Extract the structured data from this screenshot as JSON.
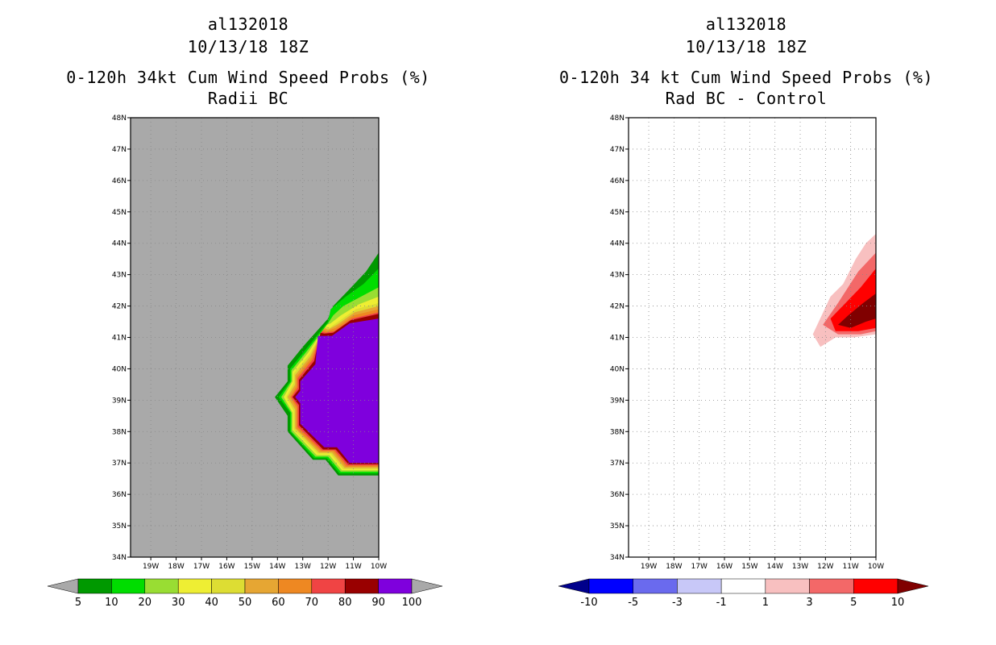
{
  "left_panel": {
    "storm_id": "al132018",
    "datetime": "10/13/18 18Z",
    "title": "0-120h 34kt Cum Wind Speed Probs (%)",
    "subtitle": "Radii BC"
  },
  "right_panel": {
    "storm_id": "al132018",
    "datetime": "10/13/18 18Z",
    "title": "0-120h 34 kt Cum Wind Speed Probs (%)",
    "subtitle": "Rad BC - Control"
  },
  "chart_data": [
    {
      "type": "filled-contour-map",
      "title": "0-120h 34kt Cum Wind Speed Probs (%)",
      "subtitle": "Radii BC",
      "background_color": "#a9a9a9",
      "lon_range": [
        -19.8,
        -10
      ],
      "lat_range": [
        34,
        48
      ],
      "x_ticks": [
        "19W",
        "18W",
        "17W",
        "16W",
        "15W",
        "14W",
        "13W",
        "12W",
        "11W",
        "10W"
      ],
      "y_ticks": [
        "34N",
        "35N",
        "36N",
        "37N",
        "38N",
        "39N",
        "40N",
        "41N",
        "42N",
        "43N",
        "44N",
        "45N",
        "46N",
        "47N",
        "48N"
      ],
      "grid": true,
      "colorbar": {
        "levels": [
          "5",
          "10",
          "20",
          "30",
          "40",
          "50",
          "60",
          "70",
          "80",
          "90",
          "100"
        ],
        "colors": [
          "#009900",
          "#00dd00",
          "#99dd33",
          "#eeee33",
          "#dddd33",
          "#e6a633",
          "#ee8822",
          "#f04444",
          "#990000",
          "#7f00dd"
        ],
        "low_color": "#a9a9a9",
        "high_color": "#a9a9a9"
      },
      "contours": [
        {
          "level": 5,
          "color": "#009900",
          "lonlat": [
            [
              -10,
              43.7
            ],
            [
              -10.5,
              43.1
            ],
            [
              -11.2,
              42.5
            ],
            [
              -11.8,
              42
            ],
            [
              -12.0,
              41.6
            ],
            [
              -13.0,
              40.7
            ],
            [
              -13.6,
              40.1
            ],
            [
              -13.6,
              39.6
            ],
            [
              -14.1,
              39.1
            ],
            [
              -13.6,
              38.5
            ],
            [
              -13.6,
              38.0
            ],
            [
              -12.6,
              37.1
            ],
            [
              -12.1,
              37.1
            ],
            [
              -11.6,
              36.6
            ],
            [
              -10,
              36.6
            ]
          ]
        },
        {
          "level": 10,
          "color": "#00dd00",
          "lonlat": [
            [
              -10,
              43.2
            ],
            [
              -10.6,
              42.7
            ],
            [
              -11.3,
              42.3
            ],
            [
              -11.9,
              41.9
            ],
            [
              -12.0,
              41.5
            ],
            [
              -12.9,
              40.6
            ],
            [
              -13.5,
              40.0
            ],
            [
              -13.5,
              39.6
            ],
            [
              -13.95,
              39.1
            ],
            [
              -13.5,
              38.6
            ],
            [
              -13.5,
              38.0
            ],
            [
              -12.55,
              37.15
            ],
            [
              -12.05,
              37.15
            ],
            [
              -11.55,
              36.67
            ],
            [
              -10,
              36.67
            ]
          ]
        },
        {
          "level": 20,
          "color": "#99dd33",
          "lonlat": [
            [
              -10,
              42.6
            ],
            [
              -10.7,
              42.3
            ],
            [
              -11.4,
              42.0
            ],
            [
              -11.8,
              41.7
            ],
            [
              -12.0,
              41.45
            ],
            [
              -12.85,
              40.55
            ],
            [
              -13.45,
              39.95
            ],
            [
              -13.45,
              39.6
            ],
            [
              -13.85,
              39.1
            ],
            [
              -13.45,
              38.6
            ],
            [
              -13.45,
              38.0
            ],
            [
              -12.5,
              37.2
            ],
            [
              -12.0,
              37.2
            ],
            [
              -11.5,
              36.72
            ],
            [
              -10,
              36.72
            ]
          ]
        },
        {
          "level": 30,
          "color": "#eeee33",
          "lonlat": [
            [
              -10,
              42.3
            ],
            [
              -10.8,
              42.05
            ],
            [
              -11.5,
              41.7
            ],
            [
              -11.9,
              41.45
            ],
            [
              -12.05,
              41.4
            ],
            [
              -12.8,
              40.5
            ],
            [
              -13.4,
              39.9
            ],
            [
              -13.4,
              39.6
            ],
            [
              -13.75,
              39.1
            ],
            [
              -13.4,
              38.6
            ],
            [
              -13.4,
              38.05
            ],
            [
              -12.45,
              37.25
            ],
            [
              -11.95,
              37.25
            ],
            [
              -11.45,
              36.77
            ],
            [
              -10,
              36.77
            ]
          ]
        },
        {
          "level": 40,
          "color": "#dddd33",
          "lonlat": [
            [
              -10,
              42.1
            ],
            [
              -10.9,
              41.9
            ],
            [
              -11.6,
              41.5
            ],
            [
              -11.95,
              41.3
            ],
            [
              -12.1,
              41.35
            ],
            [
              -12.75,
              40.45
            ],
            [
              -13.35,
              39.85
            ],
            [
              -13.35,
              39.55
            ],
            [
              -13.65,
              39.1
            ],
            [
              -13.35,
              38.65
            ],
            [
              -13.35,
              38.05
            ],
            [
              -12.4,
              37.3
            ],
            [
              -11.9,
              37.3
            ],
            [
              -11.4,
              36.8
            ],
            [
              -10,
              36.8
            ]
          ]
        },
        {
          "level": 50,
          "color": "#e6a633",
          "lonlat": [
            [
              -10,
              42.0
            ],
            [
              -10.95,
              41.8
            ],
            [
              -11.65,
              41.4
            ],
            [
              -12.0,
              41.25
            ],
            [
              -12.15,
              41.3
            ],
            [
              -12.7,
              40.4
            ],
            [
              -13.3,
              39.8
            ],
            [
              -13.3,
              39.5
            ],
            [
              -13.6,
              39.1
            ],
            [
              -13.3,
              38.7
            ],
            [
              -13.3,
              38.1
            ],
            [
              -12.35,
              37.33
            ],
            [
              -11.85,
              37.33
            ],
            [
              -11.35,
              36.84
            ],
            [
              -10,
              36.84
            ]
          ]
        },
        {
          "level": 60,
          "color": "#ee8822",
          "lonlat": [
            [
              -10,
              41.9
            ],
            [
              -11.0,
              41.7
            ],
            [
              -11.7,
              41.3
            ],
            [
              -12.05,
              41.2
            ],
            [
              -12.2,
              41.25
            ],
            [
              -12.65,
              40.35
            ],
            [
              -13.25,
              39.75
            ],
            [
              -13.25,
              39.45
            ],
            [
              -13.5,
              39.1
            ],
            [
              -13.25,
              38.75
            ],
            [
              -13.25,
              38.1
            ],
            [
              -12.3,
              37.37
            ],
            [
              -11.8,
              37.37
            ],
            [
              -11.3,
              36.88
            ],
            [
              -10,
              36.88
            ]
          ]
        },
        {
          "level": 70,
          "color": "#f04444",
          "lonlat": [
            [
              -10,
              41.8
            ],
            [
              -11.05,
              41.6
            ],
            [
              -11.75,
              41.2
            ],
            [
              -12.1,
              41.15
            ],
            [
              -12.25,
              41.2
            ],
            [
              -12.6,
              40.3
            ],
            [
              -13.2,
              39.7
            ],
            [
              -13.2,
              39.4
            ],
            [
              -13.45,
              39.1
            ],
            [
              -13.2,
              38.8
            ],
            [
              -13.2,
              38.15
            ],
            [
              -12.25,
              37.4
            ],
            [
              -11.75,
              37.4
            ],
            [
              -11.25,
              36.92
            ],
            [
              -10,
              36.92
            ]
          ]
        },
        {
          "level": 80,
          "color": "#990000",
          "lonlat": [
            [
              -10,
              41.75
            ],
            [
              -11.1,
              41.55
            ],
            [
              -11.8,
              41.15
            ],
            [
              -12.15,
              41.12
            ],
            [
              -12.3,
              41.15
            ],
            [
              -12.55,
              40.25
            ],
            [
              -13.15,
              39.65
            ],
            [
              -13.15,
              39.35
            ],
            [
              -13.4,
              39.1
            ],
            [
              -13.15,
              38.85
            ],
            [
              -13.15,
              38.2
            ],
            [
              -12.2,
              37.43
            ],
            [
              -11.7,
              37.43
            ],
            [
              -11.2,
              36.96
            ],
            [
              -10,
              36.96
            ]
          ]
        },
        {
          "level": 90,
          "color": "#7f00dd",
          "lonlat": [
            [
              -10,
              41.6
            ],
            [
              -11.15,
              41.45
            ],
            [
              -11.85,
              41.05
            ],
            [
              -12.25,
              41.05
            ],
            [
              -12.4,
              41.05
            ],
            [
              -12.5,
              40.15
            ],
            [
              -13.1,
              39.6
            ],
            [
              -13.1,
              39.3
            ],
            [
              -13.3,
              39.1
            ],
            [
              -13.1,
              38.9
            ],
            [
              -13.1,
              38.25
            ],
            [
              -12.15,
              37.5
            ],
            [
              -11.65,
              37.5
            ],
            [
              -11.15,
              37.0
            ],
            [
              -10,
              37.0
            ]
          ]
        }
      ]
    },
    {
      "type": "filled-contour-map",
      "title": "0-120h 34 kt Cum Wind Speed Probs (%)",
      "subtitle": "Rad BC - Control",
      "background_color": "#ffffff",
      "lon_range": [
        -19.8,
        -10
      ],
      "lat_range": [
        34,
        48
      ],
      "x_ticks": [
        "19W",
        "18W",
        "17W",
        "16W",
        "15W",
        "14W",
        "13W",
        "12W",
        "11W",
        "10W"
      ],
      "y_ticks": [
        "34N",
        "35N",
        "36N",
        "37N",
        "38N",
        "39N",
        "40N",
        "41N",
        "42N",
        "43N",
        "44N",
        "45N",
        "46N",
        "47N",
        "48N"
      ],
      "grid": true,
      "colorbar": {
        "levels": [
          "-10",
          "-5",
          "-3",
          "-1",
          "1",
          "3",
          "5",
          "10"
        ],
        "colors": [
          "#0000ff",
          "#6a6aee",
          "#c8c8f8",
          "#ffffff",
          "#f8c0c0",
          "#f36868",
          "#ff0000"
        ],
        "low_color": "#00008b",
        "high_color": "#800000"
      },
      "contours": [
        {
          "level": 1,
          "color": "#f8c0c0",
          "lonlat": [
            [
              -10,
              44.3
            ],
            [
              -10.4,
              44.0
            ],
            [
              -10.8,
              43.5
            ],
            [
              -11.3,
              42.7
            ],
            [
              -11.8,
              42.3
            ],
            [
              -12.5,
              41.1
            ],
            [
              -12.2,
              40.7
            ],
            [
              -11.6,
              41.0
            ],
            [
              -10.9,
              41.0
            ],
            [
              -10,
              41.1
            ]
          ]
        },
        {
          "level": 3,
          "color": "#f36868",
          "lonlat": [
            [
              -10,
              43.7
            ],
            [
              -10.7,
              43.1
            ],
            [
              -11.1,
              42.6
            ],
            [
              -11.5,
              42.1
            ],
            [
              -12.1,
              41.4
            ],
            [
              -11.5,
              41.1
            ],
            [
              -10.6,
              41.1
            ],
            [
              -10,
              41.2
            ]
          ]
        },
        {
          "level": 5,
          "color": "#ff0000",
          "lonlat": [
            [
              -10,
              43.2
            ],
            [
              -10.6,
              42.6
            ],
            [
              -11.2,
              42.1
            ],
            [
              -11.8,
              41.6
            ],
            [
              -11.6,
              41.2
            ],
            [
              -10.7,
              41.2
            ],
            [
              -10,
              41.3
            ]
          ]
        },
        {
          "level": 10,
          "color": "#800000",
          "lonlat": [
            [
              -10,
              42.4
            ],
            [
              -10.5,
              42.1
            ],
            [
              -11.1,
              41.7
            ],
            [
              -11.5,
              41.4
            ],
            [
              -11.0,
              41.3
            ],
            [
              -10.4,
              41.5
            ],
            [
              -10,
              41.6
            ]
          ]
        }
      ]
    }
  ]
}
